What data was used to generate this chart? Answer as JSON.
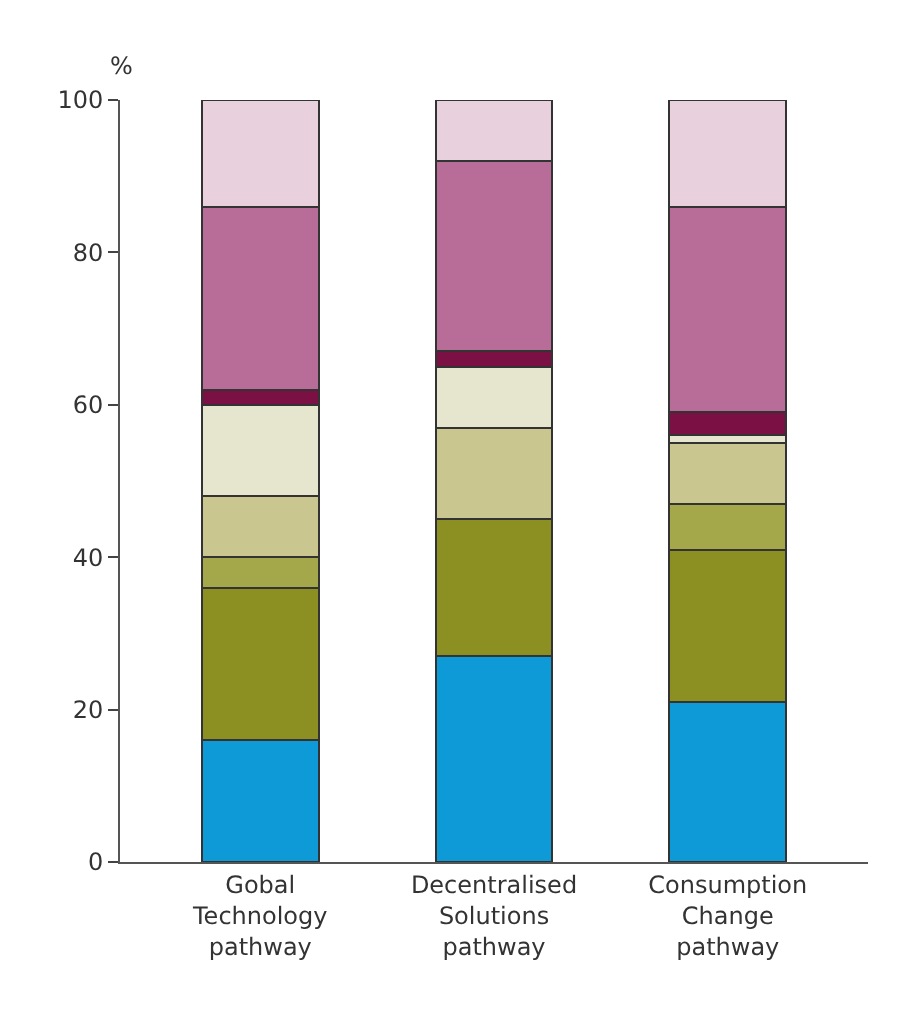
{
  "chart_data": {
    "type": "bar",
    "stacked": true,
    "ylabel": "%",
    "categories": [
      "Gobal\nTechnology\npathway",
      "Decentralised\nSolutions\npathway",
      "Consumption\nChange\npathway"
    ],
    "series": [
      {
        "color": "#0e9ad7",
        "values": [
          16,
          27,
          21
        ]
      },
      {
        "color": "#8c8f22",
        "values": [
          20,
          18,
          20
        ]
      },
      {
        "color": "#a5a84a",
        "values": [
          4,
          0,
          6
        ]
      },
      {
        "color": "#c9c78f",
        "values": [
          8,
          12,
          8
        ]
      },
      {
        "color": "#e6e6cf",
        "values": [
          12,
          8,
          1
        ]
      },
      {
        "color": "#7a1043",
        "values": [
          2,
          2,
          3
        ]
      },
      {
        "color": "#b86d98",
        "values": [
          24,
          25,
          27
        ]
      },
      {
        "color": "#e8d0dc",
        "values": [
          14,
          8,
          14
        ]
      }
    ],
    "ylim": [
      0,
      100
    ],
    "yticks": [
      0,
      20,
      40,
      60,
      80,
      100
    ]
  }
}
